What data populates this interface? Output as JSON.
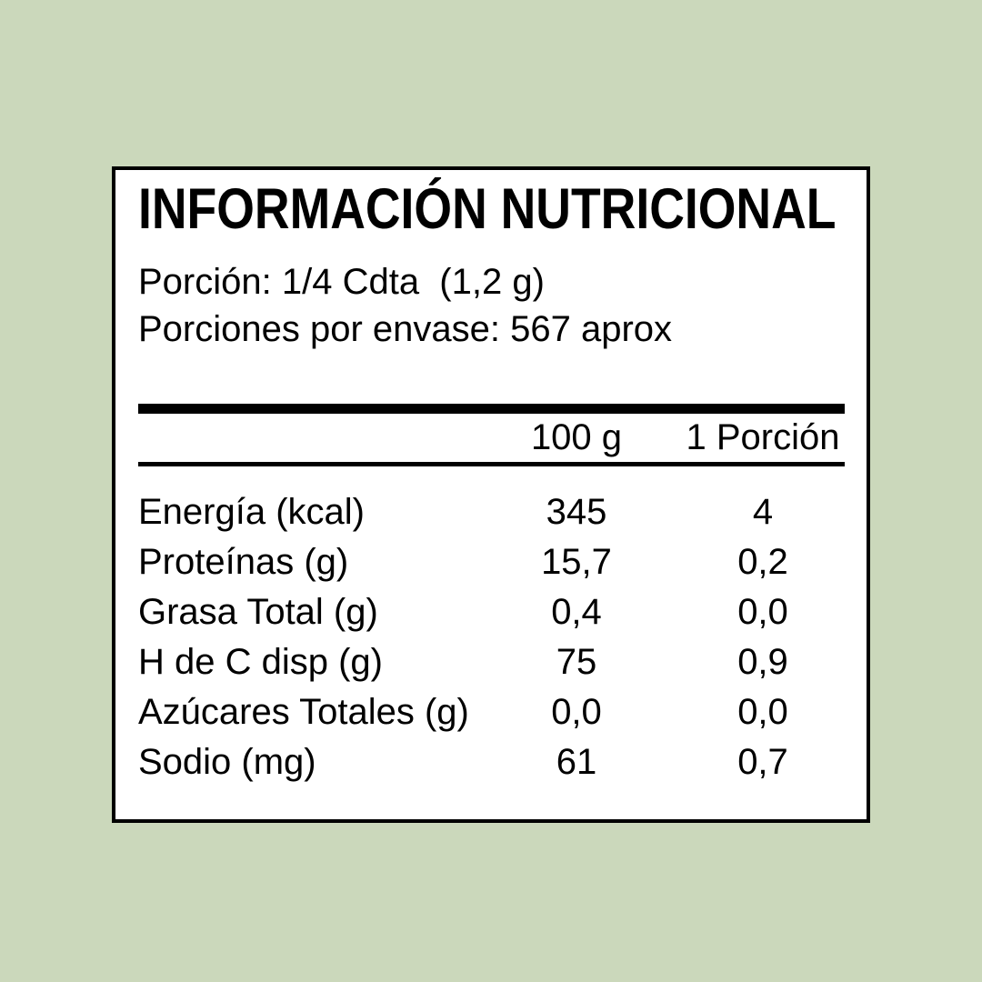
{
  "colors": {
    "background": "#cbd8bb",
    "card_background": "#ffffff",
    "line": "#000000",
    "text": "#000000"
  },
  "card": {
    "title": "INFORMACIÓN NUTRICIONAL",
    "serving_size": "Porción: 1/4 Cdta  (1,2 g)",
    "servings_per_container": "Porciones por envase: 567 aprox",
    "table": {
      "col_100g": "100 g",
      "col_portion": "1 Porción",
      "rows": [
        {
          "label": "Energía (kcal)",
          "per_100g": "345",
          "per_portion": "4"
        },
        {
          "label": "Proteínas (g)",
          "per_100g": "15,7",
          "per_portion": "0,2"
        },
        {
          "label": "Grasa Total (g)",
          "per_100g": "0,4",
          "per_portion": "0,0"
        },
        {
          "label": "H de C disp (g)",
          "per_100g": "75",
          "per_portion": "0,9"
        },
        {
          "label": "Azúcares Totales (g)",
          "per_100g": "0,0",
          "per_portion": "0,0"
        },
        {
          "label": "Sodio (mg)",
          "per_100g": "61",
          "per_portion": "0,7"
        }
      ]
    }
  }
}
